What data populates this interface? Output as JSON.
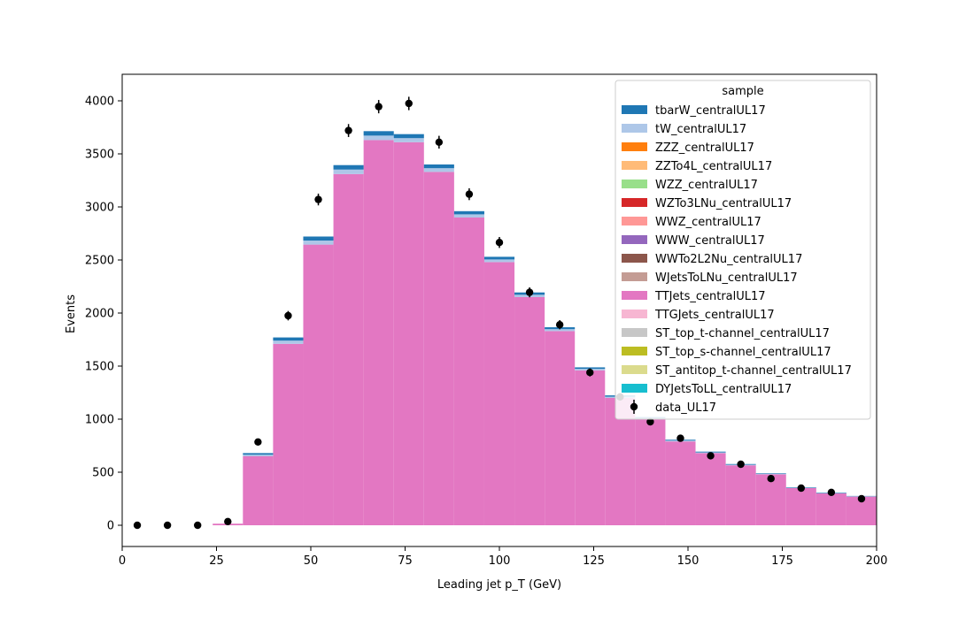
{
  "chart_data": {
    "type": "bar",
    "stacked": true,
    "xlabel": "Leading jet  p_T (GeV)",
    "ylabel": "Events",
    "xlim": [
      0,
      200
    ],
    "ylim": [
      -200,
      4250
    ],
    "x_ticks": [
      0,
      25,
      50,
      75,
      100,
      125,
      150,
      175,
      200
    ],
    "y_ticks": [
      0,
      500,
      1000,
      1500,
      2000,
      2500,
      3000,
      3500,
      4000
    ],
    "bin_edges": [
      0,
      8,
      16,
      24,
      32,
      40,
      48,
      56,
      64,
      72,
      80,
      88,
      96,
      104,
      112,
      120,
      128,
      136,
      144,
      152,
      160,
      168,
      176,
      184,
      192,
      200
    ],
    "legend": {
      "title": "sample",
      "position": "upper right"
    },
    "series": [
      {
        "name": "tbarW_centralUL17",
        "color": "#1f77b4",
        "values": [
          0,
          0,
          0,
          0,
          15,
          30,
          38,
          42,
          42,
          38,
          35,
          30,
          25,
          22,
          18,
          14,
          12,
          10,
          8,
          7,
          6,
          5,
          4,
          4,
          3
        ]
      },
      {
        "name": "tW_centralUL17",
        "color": "#aec7e8",
        "values": [
          0,
          0,
          0,
          0,
          15,
          30,
          38,
          42,
          42,
          38,
          35,
          30,
          25,
          22,
          18,
          14,
          12,
          10,
          8,
          7,
          6,
          5,
          4,
          4,
          3
        ]
      },
      {
        "name": "ZZZ_centralUL17",
        "color": "#ff7f0e",
        "values": [
          0,
          0,
          0,
          0,
          0,
          0,
          0,
          0,
          0,
          0,
          0,
          0,
          0,
          0,
          0,
          0,
          0,
          0,
          0,
          0,
          0,
          0,
          0,
          0,
          0
        ]
      },
      {
        "name": "ZZTo4L_centralUL17",
        "color": "#ffbb78",
        "values": [
          0,
          0,
          0,
          0,
          0,
          0,
          0,
          0,
          0,
          0,
          0,
          0,
          0,
          0,
          0,
          0,
          0,
          0,
          0,
          0,
          0,
          0,
          0,
          0,
          0
        ]
      },
      {
        "name": "WZZ_centralUL17",
        "color": "#98df8a",
        "values": [
          0,
          0,
          0,
          0,
          0,
          0,
          0,
          0,
          0,
          0,
          0,
          0,
          0,
          0,
          0,
          0,
          0,
          0,
          0,
          0,
          0,
          0,
          0,
          0,
          0
        ]
      },
      {
        "name": "WZTo3LNu_centralUL17",
        "color": "#d62728",
        "values": [
          0,
          0,
          0,
          0,
          0,
          0,
          0,
          0,
          0,
          0,
          0,
          0,
          0,
          0,
          0,
          0,
          0,
          0,
          0,
          0,
          0,
          0,
          0,
          0,
          0
        ]
      },
      {
        "name": "WWZ_centralUL17",
        "color": "#ff9896",
        "values": [
          0,
          0,
          0,
          0,
          0,
          0,
          0,
          0,
          0,
          0,
          0,
          0,
          0,
          0,
          0,
          0,
          0,
          0,
          0,
          0,
          0,
          0,
          0,
          0,
          0
        ]
      },
      {
        "name": "WWW_centralUL17",
        "color": "#9467bd",
        "values": [
          0,
          0,
          0,
          0,
          0,
          0,
          0,
          0,
          0,
          0,
          0,
          0,
          0,
          0,
          0,
          0,
          0,
          0,
          0,
          0,
          0,
          0,
          0,
          0,
          0
        ]
      },
      {
        "name": "WWTo2L2Nu_centralUL17",
        "color": "#8c564b",
        "values": [
          0,
          0,
          0,
          0,
          0,
          0,
          0,
          0,
          0,
          0,
          0,
          0,
          0,
          0,
          0,
          0,
          0,
          0,
          0,
          0,
          0,
          0,
          0,
          0,
          0
        ]
      },
      {
        "name": "WJetsToLNu_centralUL17",
        "color": "#c49c94",
        "values": [
          0,
          0,
          0,
          0,
          0,
          0,
          0,
          0,
          0,
          0,
          0,
          0,
          0,
          0,
          0,
          0,
          0,
          0,
          0,
          0,
          0,
          0,
          0,
          0,
          0
        ]
      },
      {
        "name": "TTJets_centralUL17",
        "color": "#e377c2",
        "values": [
          0,
          0,
          0,
          15,
          650,
          1710,
          2645,
          3310,
          3630,
          3610,
          3330,
          2900,
          2480,
          2150,
          1830,
          1460,
          1200,
          1000,
          790,
          680,
          565,
          480,
          350,
          300,
          270
        ]
      },
      {
        "name": "TTGJets_centralUL17",
        "color": "#f7b6d2",
        "values": [
          0,
          0,
          0,
          0,
          0,
          0,
          0,
          0,
          0,
          0,
          0,
          0,
          0,
          0,
          0,
          0,
          0,
          0,
          0,
          0,
          0,
          0,
          0,
          0,
          0
        ]
      },
      {
        "name": "ST_top_t-channel_centralUL17",
        "color": "#c7c7c7",
        "values": [
          0,
          0,
          0,
          0,
          0,
          0,
          0,
          0,
          0,
          0,
          0,
          0,
          0,
          0,
          0,
          0,
          0,
          0,
          0,
          0,
          0,
          0,
          0,
          0,
          0
        ]
      },
      {
        "name": "ST_top_s-channel_centralUL17",
        "color": "#bcbd22",
        "values": [
          0,
          0,
          0,
          0,
          0,
          0,
          0,
          0,
          0,
          0,
          0,
          0,
          0,
          0,
          0,
          0,
          0,
          0,
          0,
          0,
          0,
          0,
          0,
          0,
          0
        ]
      },
      {
        "name": "ST_antitop_t-channel_centralUL17",
        "color": "#dbdb8d",
        "values": [
          0,
          0,
          0,
          0,
          0,
          0,
          0,
          0,
          0,
          0,
          0,
          0,
          0,
          0,
          0,
          0,
          0,
          0,
          0,
          0,
          0,
          0,
          0,
          0,
          0
        ]
      },
      {
        "name": "DYJetsToLL_centralUL17",
        "color": "#17becf",
        "values": [
          0,
          0,
          0,
          0,
          0,
          0,
          0,
          0,
          0,
          0,
          0,
          0,
          0,
          0,
          0,
          0,
          0,
          0,
          0,
          0,
          0,
          0,
          0,
          0,
          0
        ]
      }
    ],
    "data": {
      "name": "data_UL17",
      "color": "#000000",
      "x": [
        4,
        12,
        20,
        28,
        36,
        44,
        52,
        60,
        68,
        76,
        84,
        92,
        100,
        108,
        116,
        124,
        132,
        140,
        148,
        156,
        164,
        172,
        180,
        188,
        196
      ],
      "y": [
        0,
        0,
        0,
        35,
        785,
        1975,
        3070,
        3720,
        3945,
        3975,
        3610,
        3120,
        2665,
        2195,
        1890,
        1440,
        1210,
        975,
        820,
        655,
        575,
        440,
        350,
        310,
        250
      ]
    }
  }
}
